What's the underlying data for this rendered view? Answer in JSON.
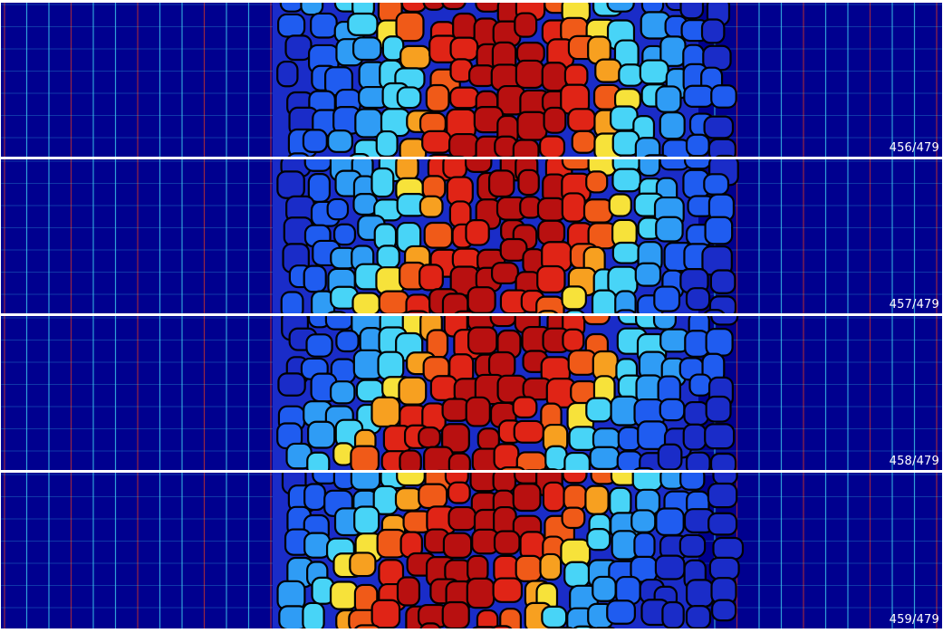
{
  "frames": [
    {
      "label": "456/479"
    },
    {
      "label": "457/479"
    },
    {
      "label": "458/479"
    },
    {
      "label": "459/479"
    }
  ],
  "colors": {
    "background": "#00008f",
    "grid_red": "#c8322a",
    "grid_cyan": "#3fd3f0",
    "cell_border": "#000000",
    "palette": [
      "#1a2cc8",
      "#1f5cf0",
      "#2f9cf5",
      "#48d4f7",
      "#f7e23a",
      "#f7a020",
      "#f05a18",
      "#e02416",
      "#b81010"
    ]
  }
}
